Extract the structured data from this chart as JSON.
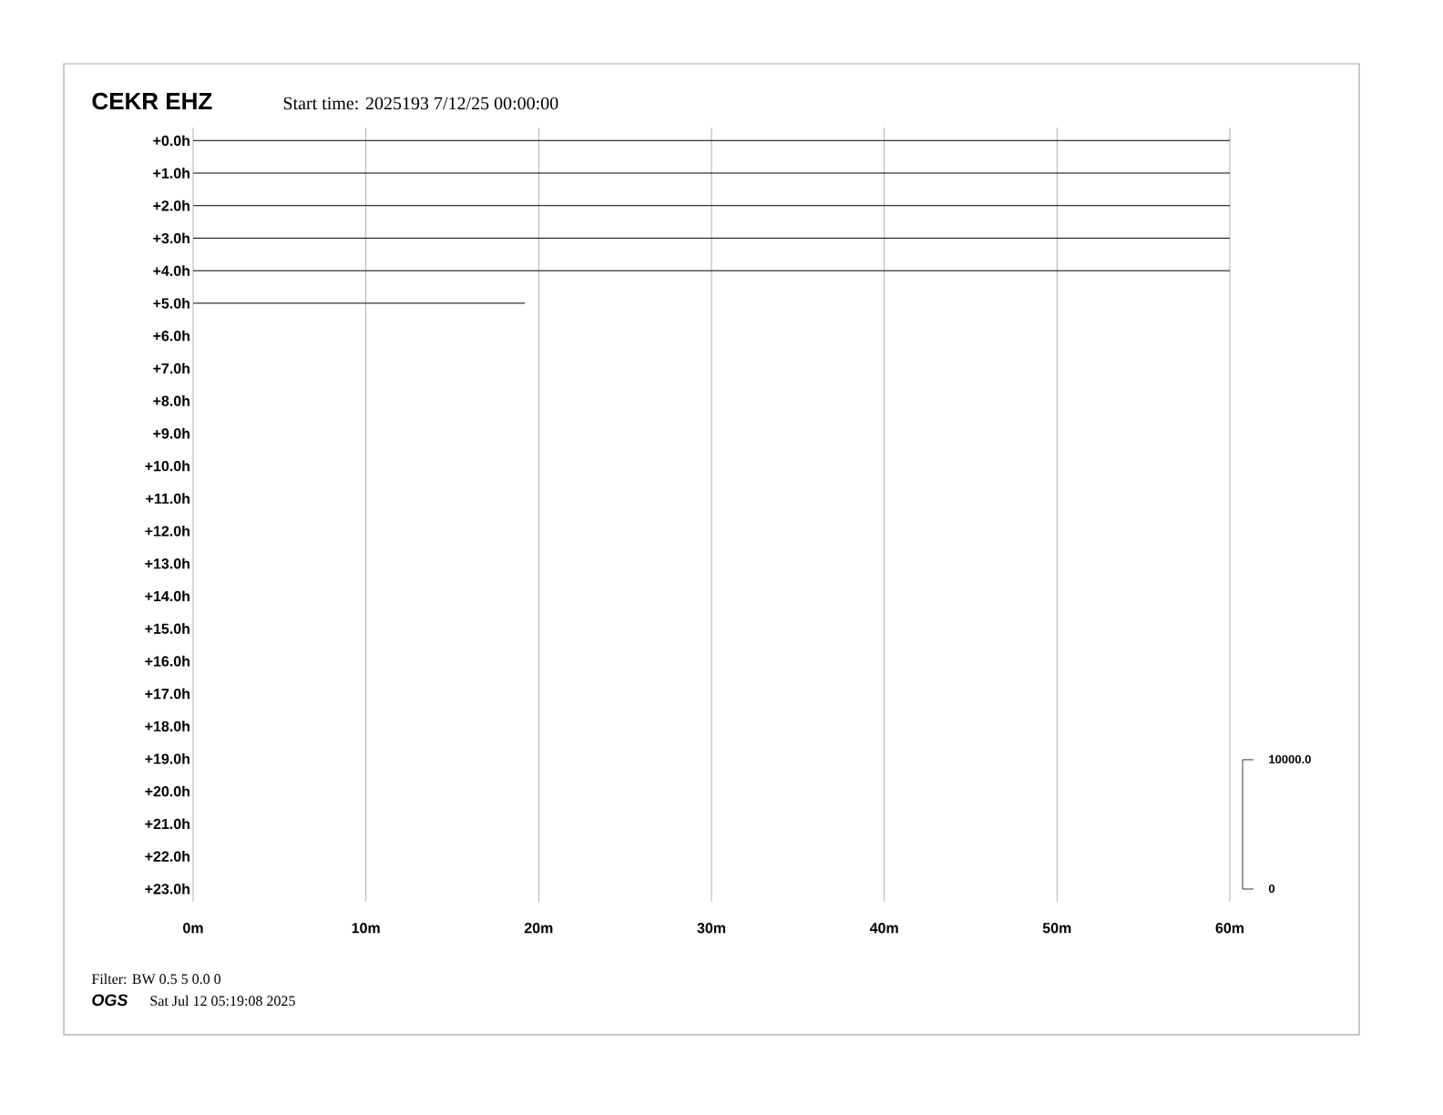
{
  "chart_data": {
    "type": "line",
    "title": "CEKR EHZ",
    "subtitle": "Start time: 2025193  7/12/25 00:00:00",
    "annotations": [
      "Filter: BW 0.5 5 0.0 0",
      "OGS",
      "Sat Jul 12 05:19:08 2025",
      "10000.0",
      "0"
    ],
    "xlim": [
      0,
      60
    ],
    "xticks": [
      {
        "value": 0,
        "label": "0m"
      },
      {
        "value": 10,
        "label": "10m"
      },
      {
        "value": 20,
        "label": "20m"
      },
      {
        "value": 30,
        "label": "30m"
      },
      {
        "value": 40,
        "label": "40m"
      },
      {
        "value": 50,
        "label": "50m"
      },
      {
        "value": 60,
        "label": "60m"
      }
    ],
    "ylim": [
      23.4,
      -0.4
    ],
    "yticks": [
      {
        "value": 0,
        "label": "+0.0h"
      },
      {
        "value": 1,
        "label": "+1.0h"
      },
      {
        "value": 2,
        "label": "+2.0h"
      },
      {
        "value": 3,
        "label": "+3.0h"
      },
      {
        "value": 4,
        "label": "+4.0h"
      },
      {
        "value": 5,
        "label": "+5.0h"
      },
      {
        "value": 6,
        "label": "+6.0h"
      },
      {
        "value": 7,
        "label": "+7.0h"
      },
      {
        "value": 8,
        "label": "+8.0h"
      },
      {
        "value": 9,
        "label": "+9.0h"
      },
      {
        "value": 10,
        "label": "+10.0h"
      },
      {
        "value": 11,
        "label": "+11.0h"
      },
      {
        "value": 12,
        "label": "+12.0h"
      },
      {
        "value": 13,
        "label": "+13.0h"
      },
      {
        "value": 14,
        "label": "+14.0h"
      },
      {
        "value": 15,
        "label": "+15.0h"
      },
      {
        "value": 16,
        "label": "+16.0h"
      },
      {
        "value": 17,
        "label": "+17.0h"
      },
      {
        "value": 18,
        "label": "+18.0h"
      },
      {
        "value": 19,
        "label": "+19.0h"
      },
      {
        "value": 20,
        "label": "+20.0h"
      },
      {
        "value": 21,
        "label": "+21.0h"
      },
      {
        "value": 22,
        "label": "+22.0h"
      },
      {
        "value": 23,
        "label": "+23.0h"
      }
    ],
    "grid": "x",
    "marker": "none",
    "line_style": "solid",
    "series": [
      {
        "color": "#000000",
        "x": [
          0,
          60
        ],
        "values": [
          0,
          0
        ]
      },
      {
        "color": "#000000",
        "x": [
          0,
          60
        ],
        "values": [
          1,
          1
        ]
      },
      {
        "color": "#000000",
        "x": [
          0,
          60
        ],
        "values": [
          2,
          2
        ]
      },
      {
        "color": "#000000",
        "x": [
          0,
          60
        ],
        "values": [
          3,
          3
        ]
      },
      {
        "color": "#000000",
        "x": [
          0,
          60
        ],
        "values": [
          4,
          4
        ]
      },
      {
        "color": "#000000",
        "x": [
          0,
          19.2
        ],
        "values": [
          5,
          5
        ]
      }
    ]
  }
}
